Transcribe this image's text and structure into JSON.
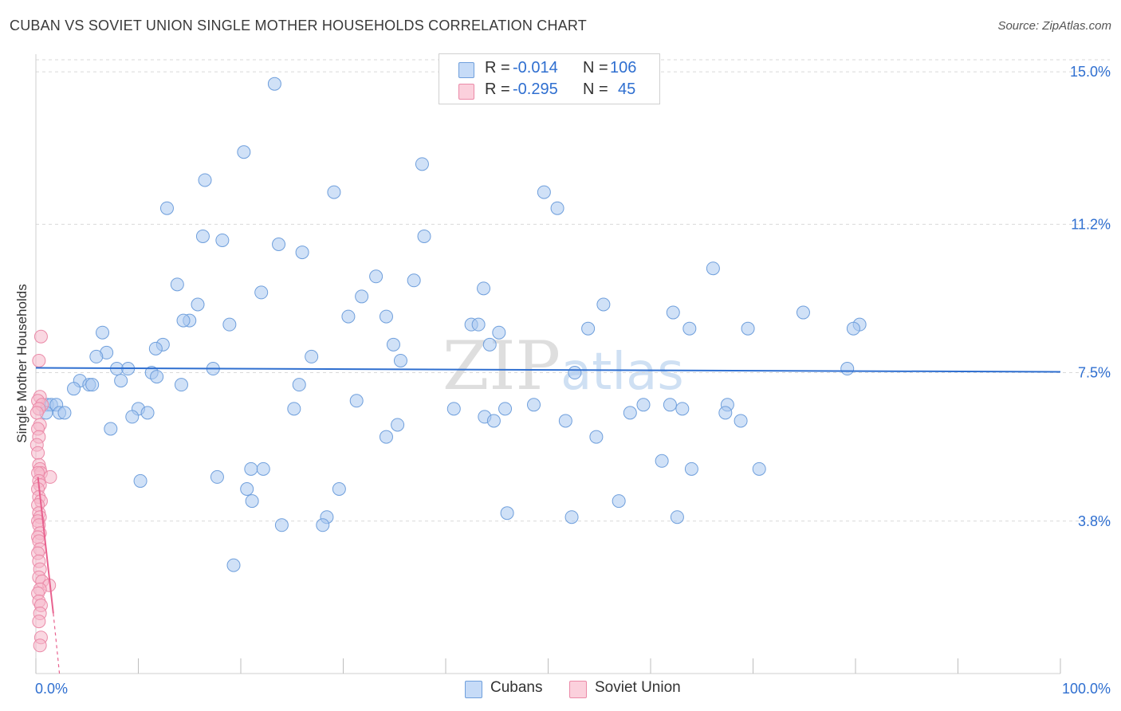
{
  "title": "CUBAN VS SOVIET UNION SINGLE MOTHER HOUSEHOLDS CORRELATION CHART",
  "source": "Source: ZipAtlas.com",
  "watermark": "ZIPatlas",
  "legend": {
    "rows": [
      {
        "r_label": "R =",
        "r_value": "-0.014",
        "n_label": "N =",
        "n_value": "106"
      },
      {
        "r_label": "R =",
        "r_value": "-0.295",
        "n_label": "N =",
        "n_value": "45"
      }
    ]
  },
  "bottom_legend": [
    "Cubans",
    "Soviet Union"
  ],
  "colors": {
    "blue_fill": "#aac8f0",
    "blue_stroke": "#6f9fdc",
    "blue_line": "#2f6fd0",
    "pink_fill": "#f6b8ca",
    "pink_stroke": "#eb8aa8",
    "pink_line": "#e8628f",
    "grid": "#d9d9d9",
    "tick_label": "#2f6fd0"
  },
  "chart_data": {
    "type": "scatter",
    "title": "CUBAN VS SOVIET UNION SINGLE MOTHER HOUSEHOLDS CORRELATION CHART",
    "xlabel": "",
    "ylabel": "Single Mother Households",
    "xlim": [
      0,
      100
    ],
    "ylim": [
      0,
      15.3
    ],
    "x_tick_labels": [
      "0.0%",
      "100.0%"
    ],
    "y_ticks": [
      3.8,
      7.5,
      11.2,
      15.0
    ],
    "y_tick_labels": [
      "3.8%",
      "7.5%",
      "11.2%",
      "15.0%"
    ],
    "grid": "horizontal dashed",
    "legend_position": "top-center",
    "series": [
      {
        "name": "Cubans",
        "r": -0.014,
        "n": 106,
        "trend": {
          "x": [
            0,
            100
          ],
          "y": [
            7.62,
            7.52
          ]
        },
        "points": [
          [
            23.3,
            14.7
          ],
          [
            20.3,
            13.0
          ],
          [
            37.7,
            12.7
          ],
          [
            16.5,
            12.3
          ],
          [
            29.1,
            12.0
          ],
          [
            49.6,
            12.0
          ],
          [
            12.8,
            11.6
          ],
          [
            50.9,
            11.6
          ],
          [
            16.3,
            10.9
          ],
          [
            18.2,
            10.8
          ],
          [
            37.9,
            10.9
          ],
          [
            23.7,
            10.7
          ],
          [
            26.0,
            10.5
          ],
          [
            66.1,
            10.1
          ],
          [
            33.2,
            9.9
          ],
          [
            36.9,
            9.8
          ],
          [
            13.8,
            9.7
          ],
          [
            43.7,
            9.6
          ],
          [
            22.0,
            9.5
          ],
          [
            31.8,
            9.4
          ],
          [
            15.8,
            9.2
          ],
          [
            55.4,
            9.2
          ],
          [
            62.2,
            9.0
          ],
          [
            74.9,
            9.0
          ],
          [
            30.5,
            8.9
          ],
          [
            34.2,
            8.9
          ],
          [
            15.0,
            8.8
          ],
          [
            14.4,
            8.8
          ],
          [
            18.9,
            8.7
          ],
          [
            42.5,
            8.7
          ],
          [
            43.2,
            8.7
          ],
          [
            53.9,
            8.6
          ],
          [
            63.8,
            8.6
          ],
          [
            69.5,
            8.6
          ],
          [
            80.4,
            8.7
          ],
          [
            79.8,
            8.6
          ],
          [
            6.5,
            8.5
          ],
          [
            45.2,
            8.5
          ],
          [
            12.4,
            8.2
          ],
          [
            11.7,
            8.1
          ],
          [
            34.9,
            8.2
          ],
          [
            44.3,
            8.2
          ],
          [
            6.9,
            8.0
          ],
          [
            5.9,
            7.9
          ],
          [
            26.9,
            7.9
          ],
          [
            35.6,
            7.8
          ],
          [
            7.9,
            7.6
          ],
          [
            9.0,
            7.6
          ],
          [
            17.3,
            7.6
          ],
          [
            52.6,
            7.5
          ],
          [
            79.2,
            7.6
          ],
          [
            11.3,
            7.5
          ],
          [
            11.8,
            7.4
          ],
          [
            8.3,
            7.3
          ],
          [
            4.3,
            7.3
          ],
          [
            5.2,
            7.2
          ],
          [
            5.5,
            7.2
          ],
          [
            14.2,
            7.2
          ],
          [
            25.7,
            7.2
          ],
          [
            3.7,
            7.1
          ],
          [
            31.3,
            6.8
          ],
          [
            1.1,
            6.7
          ],
          [
            1.5,
            6.7
          ],
          [
            2.0,
            6.7
          ],
          [
            48.6,
            6.7
          ],
          [
            59.3,
            6.7
          ],
          [
            61.9,
            6.7
          ],
          [
            67.5,
            6.7
          ],
          [
            10.0,
            6.6
          ],
          [
            25.2,
            6.6
          ],
          [
            40.8,
            6.6
          ],
          [
            45.8,
            6.6
          ],
          [
            63.1,
            6.6
          ],
          [
            1.0,
            6.5
          ],
          [
            2.3,
            6.5
          ],
          [
            2.8,
            6.5
          ],
          [
            10.9,
            6.5
          ],
          [
            58.0,
            6.5
          ],
          [
            67.3,
            6.5
          ],
          [
            43.8,
            6.4
          ],
          [
            44.7,
            6.3
          ],
          [
            9.4,
            6.4
          ],
          [
            51.7,
            6.3
          ],
          [
            68.8,
            6.3
          ],
          [
            7.3,
            6.1
          ],
          [
            35.3,
            6.2
          ],
          [
            34.2,
            5.9
          ],
          [
            54.7,
            5.9
          ],
          [
            61.1,
            5.3
          ],
          [
            64.0,
            5.1
          ],
          [
            70.6,
            5.1
          ],
          [
            21.0,
            5.1
          ],
          [
            22.2,
            5.1
          ],
          [
            17.7,
            4.9
          ],
          [
            10.2,
            4.8
          ],
          [
            20.6,
            4.6
          ],
          [
            29.6,
            4.6
          ],
          [
            56.9,
            4.3
          ],
          [
            21.1,
            4.3
          ],
          [
            46.0,
            4.0
          ],
          [
            52.3,
            3.9
          ],
          [
            62.6,
            3.9
          ],
          [
            28.4,
            3.9
          ],
          [
            24.0,
            3.7
          ],
          [
            28.0,
            3.7
          ],
          [
            19.3,
            2.7
          ]
        ]
      },
      {
        "name": "Soviet Union",
        "r": -0.295,
        "n": 45,
        "trend": {
          "x": [
            0.2,
            1.7
          ],
          "y": [
            4.9,
            1.5
          ],
          "dashed_to": {
            "x": 2.3,
            "y": 0.0
          }
        },
        "points": [
          [
            0.5,
            8.4
          ],
          [
            0.3,
            7.8
          ],
          [
            0.4,
            6.9
          ],
          [
            0.2,
            6.8
          ],
          [
            0.6,
            6.7
          ],
          [
            0.3,
            6.6
          ],
          [
            0.1,
            6.5
          ],
          [
            0.4,
            6.2
          ],
          [
            0.2,
            6.1
          ],
          [
            0.3,
            5.9
          ],
          [
            0.1,
            5.7
          ],
          [
            0.2,
            5.5
          ],
          [
            0.3,
            5.2
          ],
          [
            0.4,
            5.1
          ],
          [
            0.5,
            5.0
          ],
          [
            0.2,
            5.0
          ],
          [
            1.4,
            4.9
          ],
          [
            0.3,
            4.8
          ],
          [
            0.4,
            4.7
          ],
          [
            0.2,
            4.6
          ],
          [
            0.3,
            4.4
          ],
          [
            0.5,
            4.3
          ],
          [
            0.2,
            4.2
          ],
          [
            0.3,
            4.0
          ],
          [
            0.4,
            3.9
          ],
          [
            0.2,
            3.8
          ],
          [
            0.3,
            3.7
          ],
          [
            0.4,
            3.5
          ],
          [
            0.2,
            3.4
          ],
          [
            0.3,
            3.3
          ],
          [
            0.4,
            3.1
          ],
          [
            0.2,
            3.0
          ],
          [
            0.3,
            2.8
          ],
          [
            0.4,
            2.6
          ],
          [
            0.3,
            2.4
          ],
          [
            0.6,
            2.3
          ],
          [
            1.3,
            2.2
          ],
          [
            0.4,
            2.1
          ],
          [
            0.2,
            2.0
          ],
          [
            0.3,
            1.8
          ],
          [
            0.5,
            1.7
          ],
          [
            0.4,
            1.5
          ],
          [
            0.3,
            1.3
          ],
          [
            0.5,
            0.9
          ],
          [
            0.4,
            0.7
          ]
        ]
      }
    ]
  }
}
